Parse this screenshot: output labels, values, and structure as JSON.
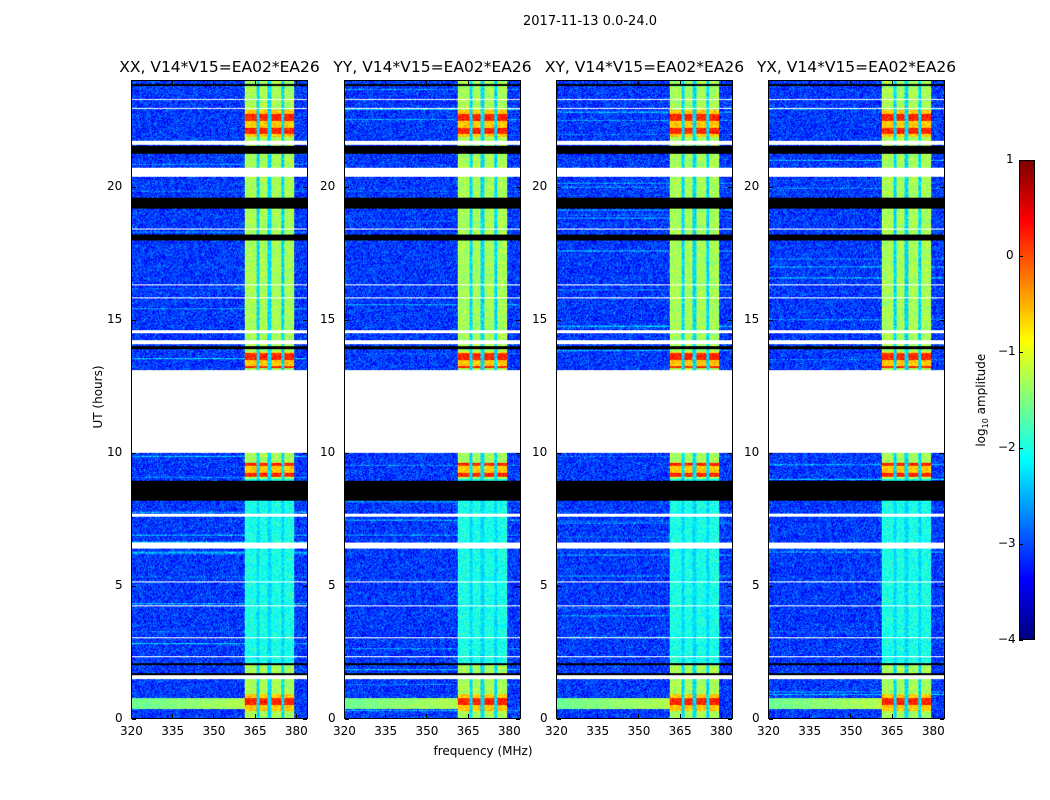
{
  "chart_data": {
    "type": "heatmap",
    "suptitle": "2017-11-13 0.0-24.0",
    "xlabel": "frequency (MHz)",
    "ylabel": "UT (hours)",
    "xlim": [
      320,
      384.4
    ],
    "ylim": [
      0,
      24
    ],
    "xticks": [
      "320",
      "335",
      "350",
      "365",
      "380"
    ],
    "yticks": [
      "0",
      "5",
      "10",
      "15",
      "20"
    ],
    "panels": [
      {
        "title": "XX, V14*V15=EA02*EA26"
      },
      {
        "title": "YY, V14*V15=EA02*EA26"
      },
      {
        "title": "XY, V14*V15=EA02*EA26"
      },
      {
        "title": "YX, V14*V15=EA02*EA26"
      }
    ],
    "colorbar": {
      "label_main": "log",
      "label_sub": "10",
      "label_rest": " amplitude",
      "vmin": -4,
      "vmax": 1,
      "ticks": [
        "1",
        "0",
        "−1",
        "−2",
        "−3",
        "−4"
      ],
      "colormap": "jet"
    },
    "background_level": -3.1,
    "rfi_band_mhz": [
      361.5,
      379.8
    ],
    "rfi_band_gaps_mhz": [
      366.3,
      370.6,
      375.4
    ],
    "rfi_level": -1.3,
    "strong_rfi_hours": [
      [
        0.25,
        0.9
      ],
      [
        13.2,
        13.8
      ],
      [
        21.9,
        22.9
      ],
      [
        9.1,
        9.6
      ]
    ],
    "strong_rfi_level": 0.2,
    "flag_white_hours": [
      [
        10.0,
        13.1
      ],
      [
        20.4,
        20.75
      ],
      [
        14.1,
        14.25
      ],
      [
        14.5,
        14.6
      ],
      [
        6.4,
        6.6
      ],
      [
        1.45,
        1.6
      ],
      [
        7.6,
        7.7
      ],
      [
        15.8,
        15.85
      ],
      [
        5.1,
        5.14
      ],
      [
        4.2,
        4.24
      ],
      [
        3.0,
        3.04
      ],
      [
        2.3,
        2.34
      ],
      [
        21.6,
        21.75
      ],
      [
        23.3,
        23.34
      ],
      [
        16.3,
        16.34
      ],
      [
        18.4,
        18.45
      ],
      [
        22.95,
        23.0
      ]
    ],
    "flag_black_hours": [
      [
        8.2,
        8.95
      ],
      [
        19.2,
        19.6
      ],
      [
        21.25,
        21.55
      ],
      [
        18.0,
        18.2
      ],
      [
        1.6,
        1.7
      ],
      [
        13.9,
        14.0
      ],
      [
        2.0,
        2.08
      ],
      [
        23.8,
        23.9
      ]
    ]
  }
}
